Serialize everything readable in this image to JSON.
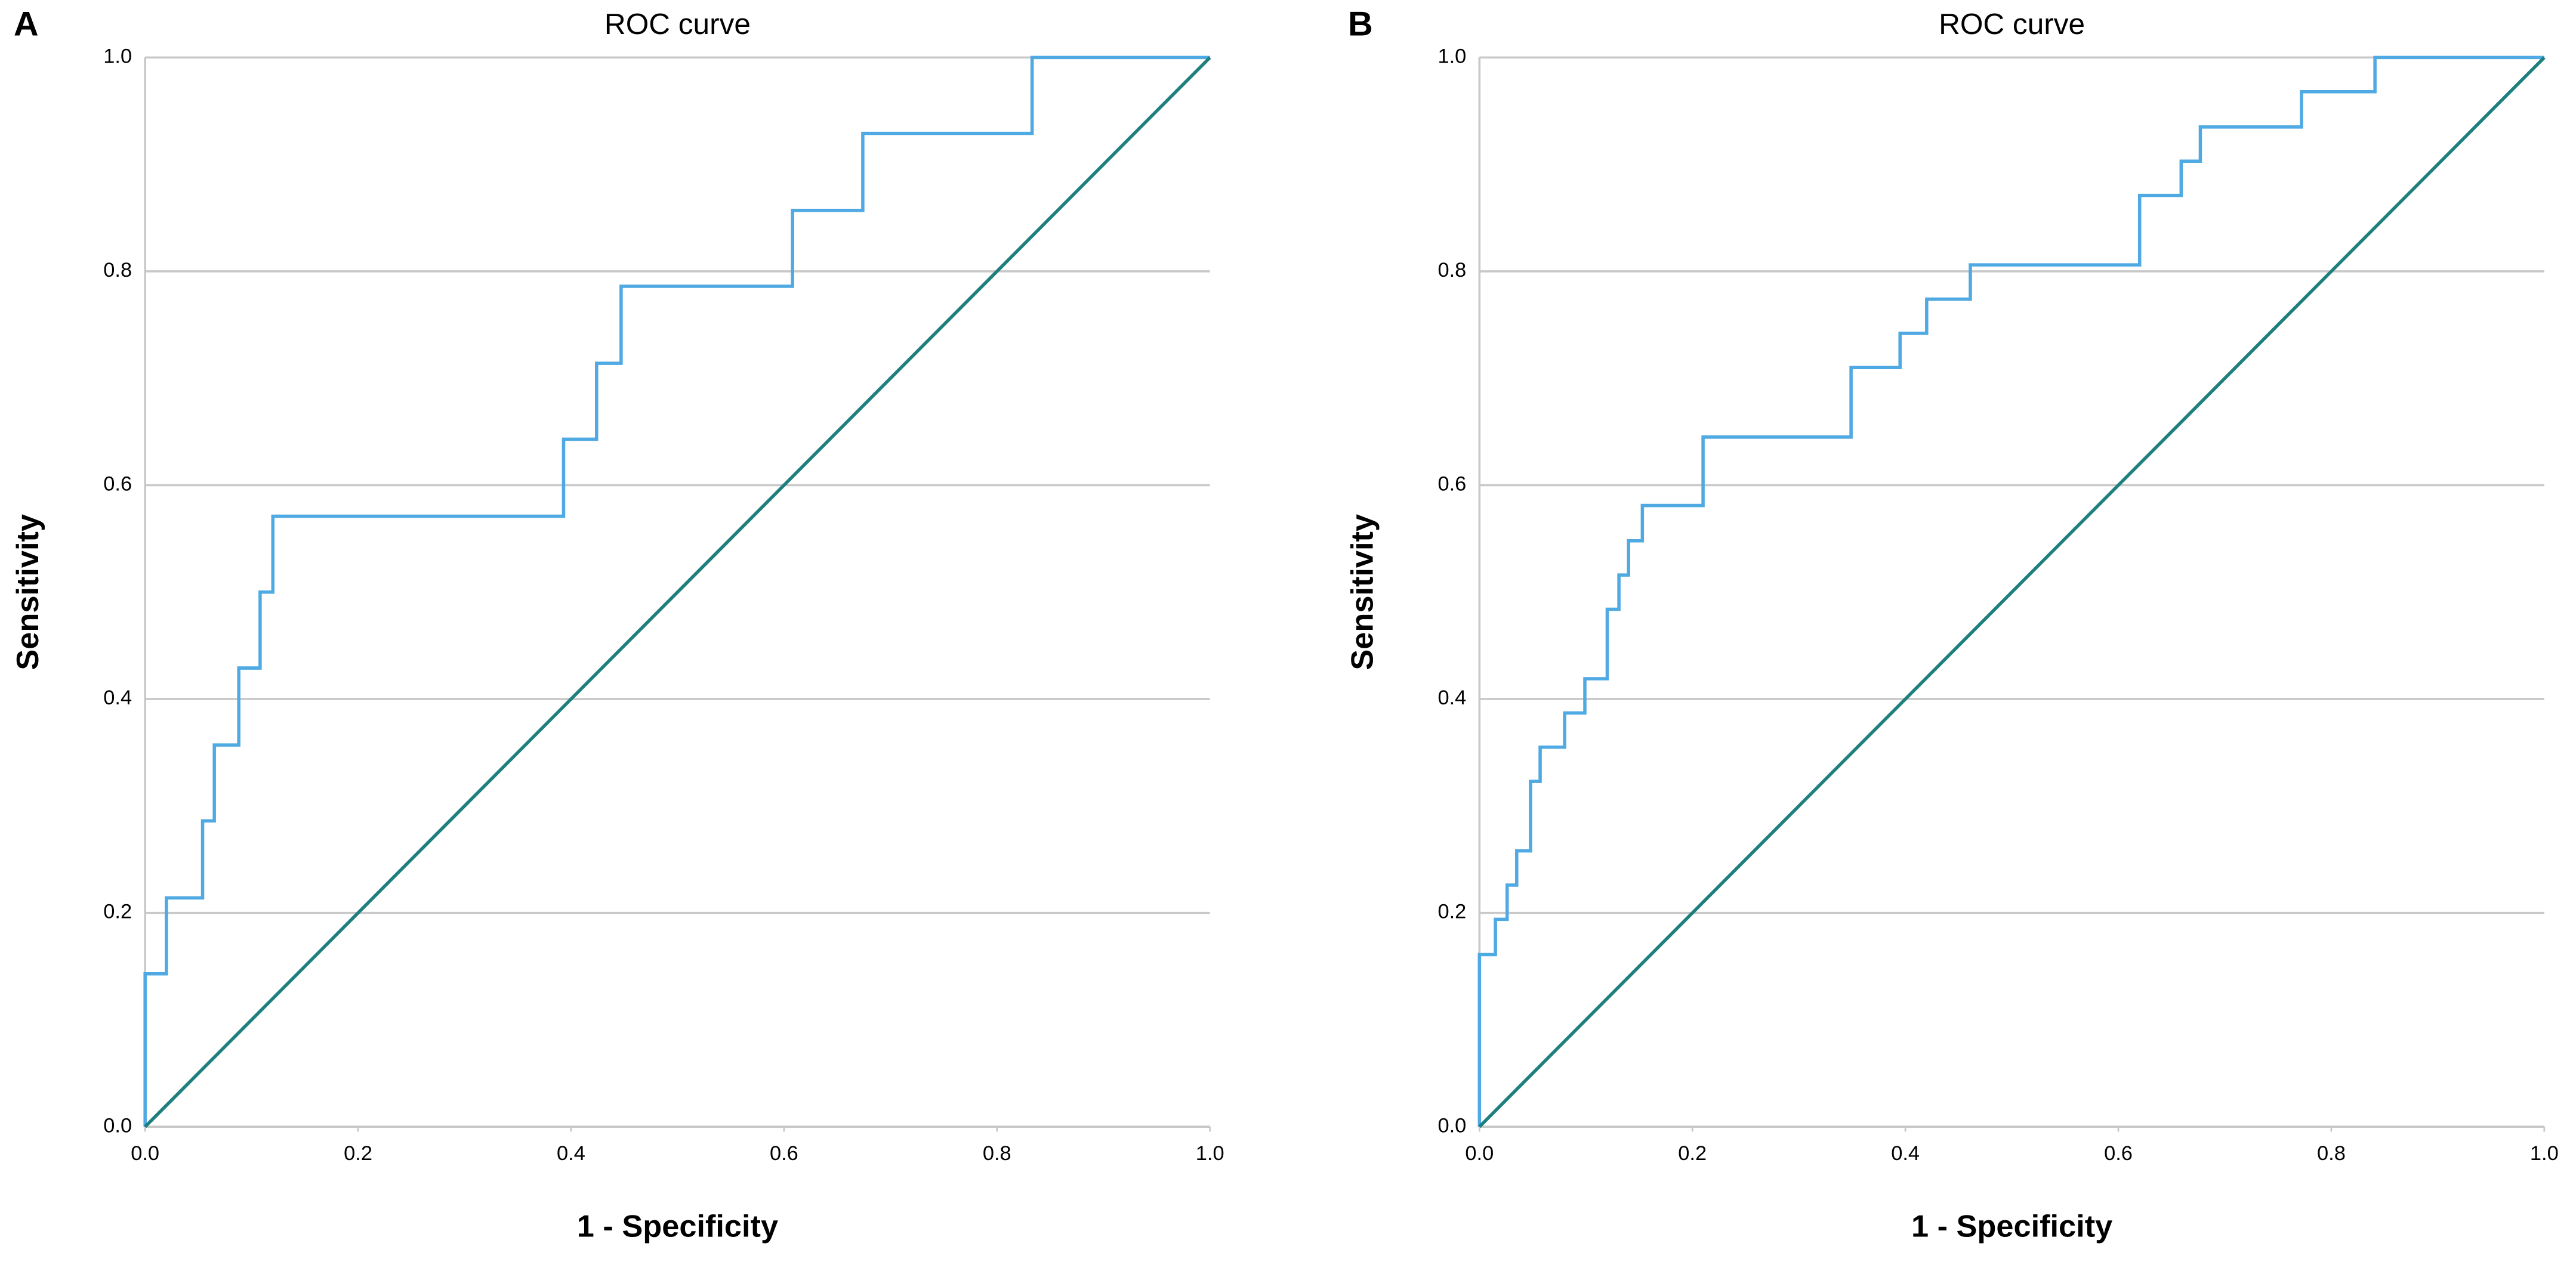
{
  "chart_data": [
    {
      "type": "line",
      "panel": "A",
      "title": "ROC curve",
      "xlabel": "1 - Specificity",
      "ylabel": "Sensitivity",
      "xlim": [
        0,
        1
      ],
      "ylim": [
        0,
        1
      ],
      "grid": true,
      "xticks": [
        {
          "value": 0,
          "label": "0.0"
        },
        0.2,
        0.4,
        0.6,
        0.8,
        {
          "value": 1,
          "label": "1.0"
        }
      ],
      "yticks": [
        {
          "value": 0,
          "label": "0.0"
        },
        0.2,
        0.4,
        0.6,
        0.8,
        {
          "value": 1,
          "label": "1.0"
        }
      ],
      "series": [
        {
          "color": "#4fa9e2",
          "x": [
            0,
            0,
            0.02,
            0.02,
            0.054,
            0.054,
            0.065,
            0.065,
            0.088,
            0.088,
            0.108,
            0.108,
            0.12,
            0.12,
            0.393,
            0.393,
            0.424,
            0.424,
            0.447,
            0.447,
            0.608,
            0.608,
            0.674,
            0.674,
            0.833,
            0.833,
            1
          ],
          "values": [
            0,
            0.143,
            0.143,
            0.214,
            0.214,
            0.286,
            0.286,
            0.357,
            0.357,
            0.429,
            0.429,
            0.5,
            0.5,
            0.571,
            0.571,
            0.643,
            0.643,
            0.714,
            0.714,
            0.786,
            0.786,
            0.857,
            0.857,
            0.929,
            0.929,
            1,
            1
          ]
        },
        {
          "color": "#1f7f7f",
          "x": [
            0,
            1
          ],
          "values": [
            0,
            1
          ]
        }
      ]
    },
    {
      "type": "line",
      "panel": "B",
      "title": "ROC curve",
      "xlabel": "1 - Specificity",
      "ylabel": "Sensitivity",
      "xlim": [
        0,
        1
      ],
      "ylim": [
        0,
        1
      ],
      "grid": true,
      "xticks": [
        {
          "value": 0,
          "label": "0.0"
        },
        0.2,
        0.4,
        0.6,
        0.8,
        {
          "value": 1,
          "label": "1.0"
        }
      ],
      "yticks": [
        {
          "value": 0,
          "label": "0.0"
        },
        0.2,
        0.4,
        0.6,
        0.8,
        {
          "value": 1,
          "label": "1.0"
        }
      ],
      "series": [
        {
          "color": "#4fa9e2",
          "x": [
            0,
            0,
            0.015,
            0.015,
            0.026,
            0.026,
            0.035,
            0.035,
            0.048,
            0.048,
            0.057,
            0.057,
            0.08,
            0.08,
            0.099,
            0.099,
            0.12,
            0.12,
            0.131,
            0.131,
            0.14,
            0.14,
            0.153,
            0.153,
            0.21,
            0.21,
            0.349,
            0.349,
            0.395,
            0.395,
            0.42,
            0.42,
            0.461,
            0.461,
            0.62,
            0.62,
            0.659,
            0.659,
            0.677,
            0.677,
            0.772,
            0.772,
            0.841,
            0.841,
            1
          ],
          "values": [
            0,
            0.161,
            0.161,
            0.194,
            0.194,
            0.226,
            0.226,
            0.258,
            0.258,
            0.323,
            0.323,
            0.355,
            0.355,
            0.387,
            0.387,
            0.419,
            0.419,
            0.484,
            0.484,
            0.516,
            0.516,
            0.548,
            0.548,
            0.581,
            0.581,
            0.645,
            0.645,
            0.71,
            0.71,
            0.742,
            0.742,
            0.774,
            0.774,
            0.806,
            0.806,
            0.871,
            0.871,
            0.903,
            0.903,
            0.935,
            0.935,
            0.968,
            0.968,
            1,
            1
          ]
        },
        {
          "color": "#1f7f7f",
          "x": [
            0,
            1
          ],
          "values": [
            0,
            1
          ]
        }
      ]
    }
  ]
}
